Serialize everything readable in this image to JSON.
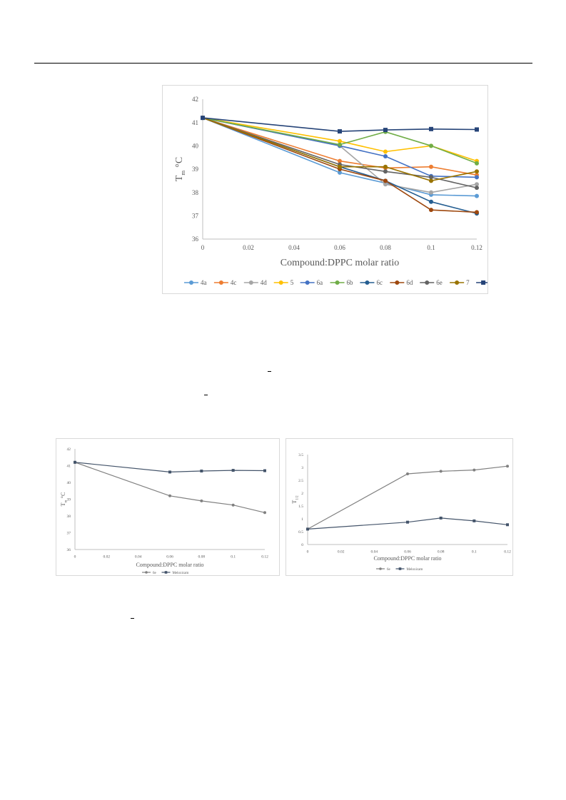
{
  "colors": {
    "4a": "#5b9bd5",
    "4c": "#ed7d31",
    "4d": "#a5a5a5",
    "5": "#ffc000",
    "6a": "#4472c4",
    "6b": "#70ad47",
    "6c": "#255e91",
    "6d": "#9e480e",
    "6e": "#636363",
    "7": "#997300",
    "Meloxicam": "#264478",
    "grid": "#d9d9d9",
    "axis": "#595959"
  },
  "chart_data": [
    {
      "type": "line",
      "xlabel": "Compound:DPPC molar ratio",
      "ylabel_main": "T",
      "ylabel_sub": "m",
      "ylabel_unit": "°C",
      "xlim": [
        0,
        0.12
      ],
      "ylim": [
        36,
        42
      ],
      "x_ticks": [
        "0",
        "0.02",
        "0.04",
        "0.06",
        "0.08",
        "0.1",
        "0.12"
      ],
      "y_ticks": [
        "36",
        "37",
        "38",
        "39",
        "40",
        "41",
        "42"
      ],
      "grid": false,
      "legend_position": "bottom",
      "x": [
        0,
        0.06,
        0.08,
        0.1,
        0.12
      ],
      "series": [
        {
          "name": "4a",
          "marker": "circle",
          "values": [
            41.2,
            38.85,
            38.4,
            37.9,
            37.85
          ]
        },
        {
          "name": "4c",
          "marker": "circle",
          "values": [
            41.2,
            39.35,
            39.05,
            39.1,
            38.75
          ]
        },
        {
          "name": "4d",
          "marker": "circle",
          "values": [
            41.2,
            40.0,
            38.35,
            38.0,
            38.35
          ]
        },
        {
          "name": "5",
          "marker": "circle",
          "values": [
            41.2,
            40.2,
            39.75,
            40.0,
            39.35
          ]
        },
        {
          "name": "6a",
          "marker": "circle",
          "values": [
            41.2,
            40.0,
            39.55,
            38.7,
            38.65
          ]
        },
        {
          "name": "6b",
          "marker": "circle",
          "values": [
            41.2,
            40.05,
            40.6,
            40.0,
            39.25
          ]
        },
        {
          "name": "6c",
          "marker": "circle",
          "values": [
            41.2,
            39.1,
            38.5,
            37.6,
            37.1
          ]
        },
        {
          "name": "6d",
          "marker": "circle",
          "values": [
            41.2,
            39.0,
            38.5,
            37.25,
            37.15
          ]
        },
        {
          "name": "6e",
          "marker": "circle",
          "values": [
            41.2,
            39.2,
            38.9,
            38.65,
            38.2
          ]
        },
        {
          "name": "7",
          "marker": "circle",
          "values": [
            41.2,
            39.1,
            39.1,
            38.5,
            38.9
          ]
        },
        {
          "name": "Meloxicam",
          "marker": "square",
          "values": [
            41.2,
            40.62,
            40.68,
            40.72,
            40.7
          ]
        }
      ]
    },
    {
      "type": "line",
      "xlabel": "Compound:DPPC molar ratio",
      "ylabel_main": "T",
      "ylabel_sub": "m",
      "ylabel_unit": "°C",
      "xlim": [
        0,
        0.12
      ],
      "ylim": [
        36,
        42
      ],
      "x_ticks": [
        "0",
        "0.02",
        "0.04",
        "0.06",
        "0.08",
        "0.1",
        "0.12"
      ],
      "y_ticks": [
        "36",
        "37",
        "38",
        "39",
        "40",
        "41",
        "42"
      ],
      "grid": false,
      "legend_position": "bottom",
      "x": [
        0,
        0.06,
        0.08,
        0.1,
        0.12
      ],
      "series": [
        {
          "name": "6e",
          "marker": "circle",
          "color": "#808080",
          "values": [
            41.2,
            39.2,
            38.9,
            38.65,
            38.2
          ]
        },
        {
          "name": "Meloxicam",
          "marker": "square",
          "color": "#44546a",
          "values": [
            41.2,
            40.62,
            40.68,
            40.72,
            40.7
          ]
        }
      ]
    },
    {
      "type": "line",
      "xlabel": "Compound:DPPC molar ratio",
      "ylabel_main": "T",
      "ylabel_sub": "1/2",
      "ylabel_unit": "",
      "xlim": [
        0,
        0.12
      ],
      "ylim": [
        0,
        3.5
      ],
      "x_ticks": [
        "0",
        "0.02",
        "0.04",
        "0.06",
        "0.08",
        "0.1",
        "0.12"
      ],
      "y_ticks": [
        "0",
        "0.5",
        "1",
        "1.5",
        "2",
        "2.5",
        "3",
        "3.5"
      ],
      "grid": false,
      "legend_position": "bottom",
      "x": [
        0,
        0.06,
        0.08,
        0.1,
        0.12
      ],
      "series": [
        {
          "name": "6e",
          "marker": "circle",
          "color": "#808080",
          "values": [
            0.6,
            2.75,
            2.85,
            2.9,
            3.05
          ]
        },
        {
          "name": "Meloxicam",
          "marker": "square",
          "color": "#44546a",
          "values": [
            0.6,
            0.87,
            1.03,
            0.92,
            0.77
          ]
        }
      ]
    }
  ]
}
